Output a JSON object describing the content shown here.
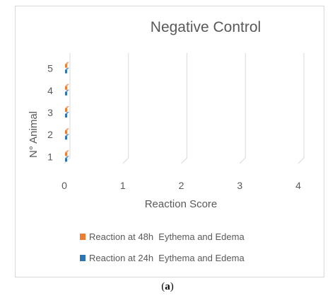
{
  "chart_data": {
    "type": "bar",
    "orientation": "horizontal",
    "style": "3d",
    "title": "Negative Control",
    "xlabel": "Reaction Score",
    "ylabel": "N° Animal",
    "categories": [
      "1",
      "2",
      "3",
      "4",
      "5"
    ],
    "xlim": [
      0,
      4
    ],
    "x_ticks": [
      "0",
      "1",
      "2",
      "3",
      "4"
    ],
    "series": [
      {
        "name": "Reaction at 24h  Eythema and Edema",
        "color": "#2e75b6",
        "values": [
          0,
          0,
          0,
          0,
          0
        ]
      },
      {
        "name": "Reaction at 48h  Eythema and Edema",
        "color": "#ed7d31",
        "values": [
          0,
          0,
          0,
          0,
          0
        ]
      }
    ],
    "legend_position": "bottom",
    "legend_order": [
      1,
      0
    ],
    "grid": true
  },
  "caption": {
    "open": "(",
    "label": "a",
    "close": ")"
  }
}
